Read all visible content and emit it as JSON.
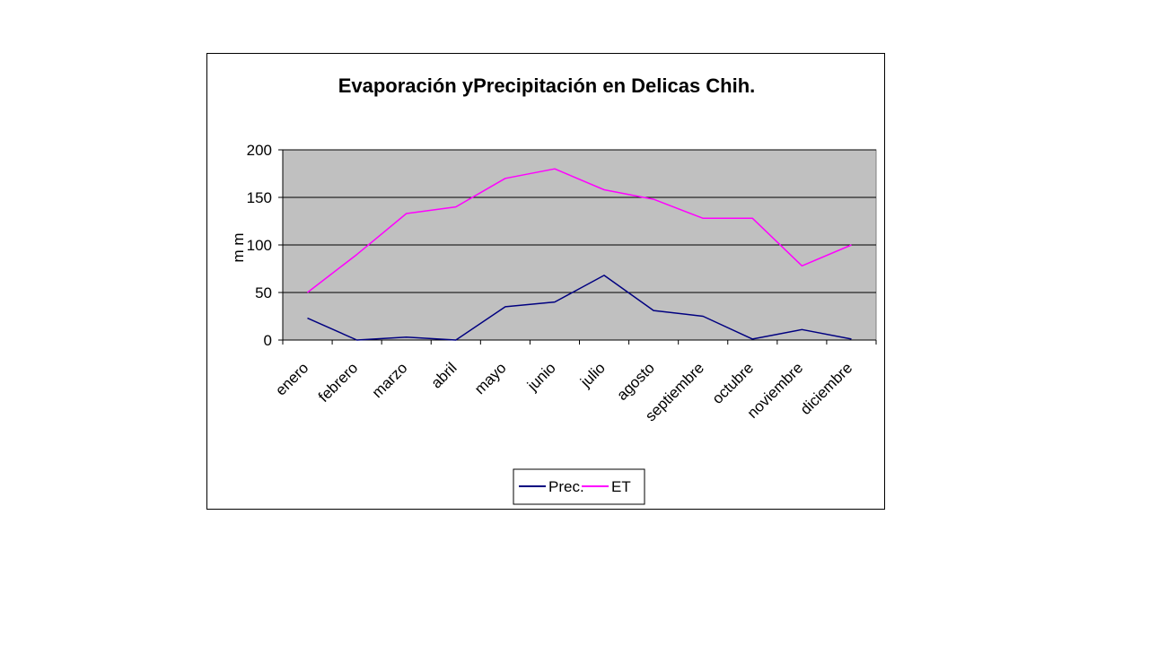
{
  "chart_data": {
    "type": "line",
    "title": "Evaporación yPrecipitación en Delicas Chih.",
    "xlabel": "",
    "ylabel": "m m",
    "categories": [
      "enero",
      "febrero",
      "marzo",
      "abril",
      "mayo",
      "junio",
      "julio",
      "agosto",
      "septiembre",
      "octubre",
      "noviembre",
      "diciembre"
    ],
    "ylim": [
      0,
      200
    ],
    "yticks": [
      0,
      50,
      100,
      150,
      200
    ],
    "grid": true,
    "legend_position": "bottom",
    "plot_background": "#c0c0c0",
    "series": [
      {
        "name": "Prec.",
        "color": "#000080",
        "values": [
          23,
          0,
          3,
          0,
          35,
          40,
          68,
          31,
          25,
          1,
          11,
          1
        ]
      },
      {
        "name": "ET",
        "color": "#ff00ff",
        "values": [
          50,
          90,
          133,
          140,
          170,
          180,
          158,
          148,
          128,
          128,
          78,
          100
        ]
      }
    ]
  }
}
